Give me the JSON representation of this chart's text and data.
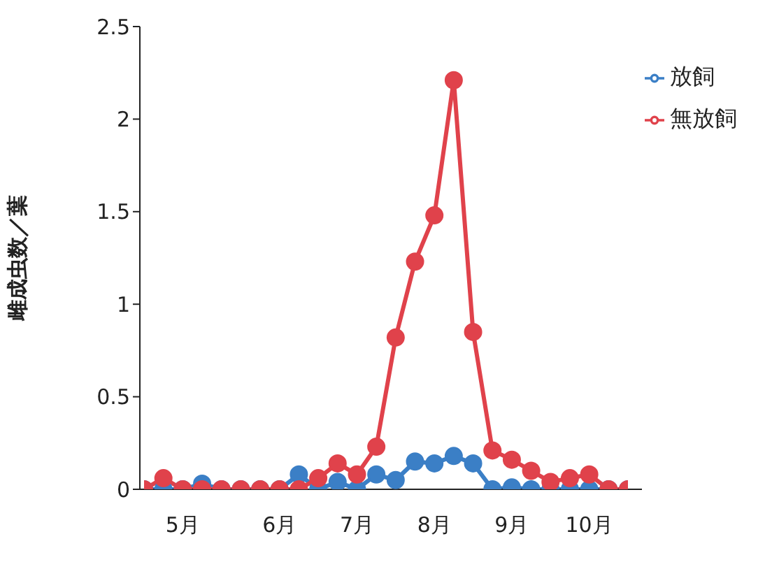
{
  "chart_data": {
    "type": "line",
    "ylabel": "雌成虫数／葉",
    "categories": [
      null,
      null,
      "5月",
      null,
      null,
      null,
      null,
      "6月",
      null,
      null,
      null,
      "7月",
      null,
      null,
      null,
      "8月",
      null,
      null,
      null,
      "9月",
      null,
      null,
      null,
      "10月",
      null,
      null
    ],
    "series": [
      {
        "name": "放飼",
        "color": "#3b7fc6",
        "values": [
          0,
          0,
          0,
          0.03,
          0,
          0,
          0,
          0,
          0.08,
          0,
          0.04,
          0,
          0.08,
          0.05,
          0.15,
          0.14,
          0.18,
          0.14,
          0,
          0.01,
          0,
          0,
          0,
          0,
          0,
          0
        ]
      },
      {
        "name": "無放飼",
        "color": "#e0424b",
        "values": [
          0,
          0.06,
          0,
          0,
          0,
          0,
          0,
          0,
          0,
          0.06,
          0.14,
          0.08,
          0.23,
          0.82,
          1.23,
          1.48,
          2.21,
          0.85,
          0.21,
          0.16,
          0.1,
          0.04,
          0.06,
          0.08,
          0,
          0
        ]
      }
    ],
    "ylim": [
      0,
      2.5
    ],
    "yticks": [
      0,
      0.5,
      1,
      1.5,
      2,
      2.5
    ],
    "grid": false,
    "legend": "top right",
    "marker": "circle",
    "line_style": "solid"
  }
}
